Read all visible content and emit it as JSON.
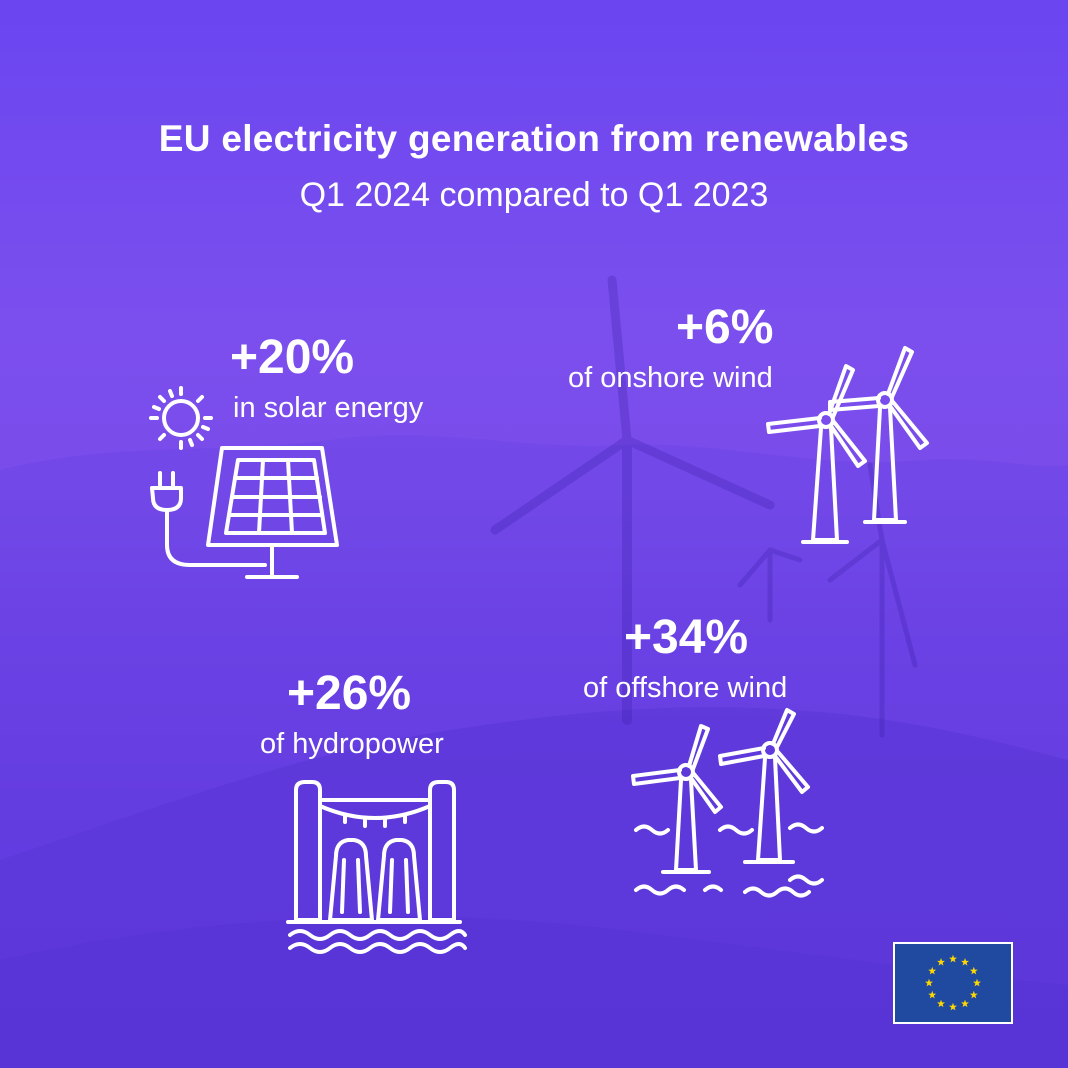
{
  "title": "EU electricity generation from renewables",
  "subtitle": "Q1 2024 compared to Q1 2023",
  "stats": {
    "solar": {
      "value": "+20%",
      "label": "in solar energy",
      "icon": "solar-panel-icon"
    },
    "onshore": {
      "value": "+6%",
      "label": "of onshore wind",
      "icon": "onshore-wind-turbines-icon"
    },
    "hydro": {
      "value": "+26%",
      "label": "of hydropower",
      "icon": "hydropower-dam-icon"
    },
    "offshore": {
      "value": "+34%",
      "label": "of offshore wind",
      "icon": "offshore-wind-turbines-icon"
    }
  },
  "logo": {
    "icon": "eu-flag-icon",
    "colors": {
      "field": "#1f4aa0",
      "stars": "#ffd700"
    }
  },
  "colors": {
    "background_top": "#6a45f0",
    "background_bottom": "#5a33d8",
    "text": "#ffffff"
  }
}
